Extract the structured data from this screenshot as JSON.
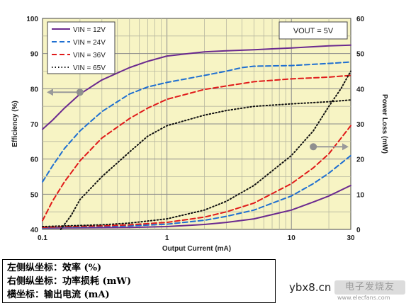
{
  "chart_data": {
    "type": "line",
    "title": "",
    "xlabel": "Output Current (mA)",
    "xscale": "log",
    "xlim": [
      0.1,
      30
    ],
    "x_ticks": [
      "0.1",
      "1",
      "10",
      "30"
    ],
    "ylabel_left": "Efficiency (%)",
    "ylim_left": [
      40,
      100
    ],
    "y_ticks_left": [
      "40",
      "50",
      "60",
      "70",
      "80",
      "90",
      "100"
    ],
    "ylabel_right": "Power Loss (mW)",
    "ylim_right": [
      0,
      60
    ],
    "y_ticks_right": [
      "0",
      "10",
      "20",
      "30",
      "40",
      "50",
      "60"
    ],
    "grid": true,
    "legend_position": "top-left",
    "annotation": "VOUT = 5V",
    "background_color": "#f7f4c4",
    "series": [
      {
        "name": "VIN = 12V",
        "color": "#6b2a8f",
        "dash": "solid",
        "efficiency": {
          "x": [
            0.1,
            0.12,
            0.15,
            0.2,
            0.3,
            0.5,
            0.7,
            1,
            2,
            3,
            5,
            10,
            20,
            30
          ],
          "y": [
            68.5,
            71,
            74.5,
            78.5,
            82.5,
            86,
            87.8,
            89.3,
            90.5,
            90.8,
            91.1,
            91.6,
            92.2,
            92.4
          ]
        },
        "power_loss": {
          "x": [
            0.1,
            0.3,
            0.5,
            1,
            2,
            3,
            5,
            10,
            15,
            20,
            30
          ],
          "y": [
            0.4,
            0.5,
            0.55,
            0.8,
            1.4,
            2,
            3,
            5.5,
            7.8,
            9.5,
            12.5
          ]
        }
      },
      {
        "name": "VIN = 24V",
        "color": "#1f6fd1",
        "dash": "dashed",
        "efficiency": {
          "x": [
            0.1,
            0.12,
            0.15,
            0.2,
            0.3,
            0.5,
            0.7,
            1,
            2,
            3,
            4,
            5,
            10,
            20,
            30
          ],
          "y": [
            53.5,
            58,
            63,
            68,
            73.5,
            78.5,
            80.5,
            81.8,
            83.8,
            85,
            86,
            86.4,
            86.6,
            87.2,
            87.6
          ]
        },
        "power_loss": {
          "x": [
            0.1,
            0.3,
            0.5,
            1,
            2,
            3,
            5,
            10,
            15,
            20,
            30
          ],
          "y": [
            0.5,
            0.8,
            1,
            1.5,
            2.6,
            3.7,
            5.5,
            9.5,
            13,
            16,
            21
          ]
        }
      },
      {
        "name": "VIN = 36V",
        "color": "#e01a1a",
        "dash": "dashed",
        "efficiency": {
          "x": [
            0.1,
            0.12,
            0.15,
            0.2,
            0.3,
            0.5,
            0.7,
            1,
            2,
            3,
            5,
            10,
            20,
            30
          ],
          "y": [
            42.5,
            48,
            53.5,
            59.5,
            66,
            71.5,
            74.5,
            77,
            79.8,
            80.8,
            82,
            82.8,
            83.3,
            83.8
          ]
        },
        "power_loss": {
          "x": [
            0.1,
            0.3,
            0.5,
            1,
            2,
            3,
            5,
            10,
            15,
            20,
            30
          ],
          "y": [
            0.6,
            1,
            1.3,
            2,
            3.5,
            5,
            7.5,
            13,
            17.5,
            21.5,
            29.5
          ]
        }
      },
      {
        "name": "VIN = 65V",
        "color": "#111111",
        "dash": "dotted",
        "efficiency": {
          "x": [
            0.14,
            0.17,
            0.2,
            0.3,
            0.5,
            0.7,
            1,
            2,
            3,
            5,
            10,
            20,
            30
          ],
          "y": [
            40,
            44,
            48.5,
            55,
            62,
            66.5,
            69.5,
            72.5,
            73.8,
            75,
            75.7,
            76.3,
            76.8
          ]
        },
        "power_loss": {
          "x": [
            0.1,
            0.3,
            0.5,
            1,
            2,
            3,
            5,
            10,
            15,
            20,
            25,
            30
          ],
          "y": [
            0.8,
            1.3,
            1.8,
            3,
            5.5,
            8,
            12.5,
            21,
            28,
            35,
            40,
            45
          ]
        }
      }
    ]
  },
  "captions": [
    "左侧纵坐标：效率 (%)",
    "右侧纵坐标：功率损耗 (mW)",
    "横坐标：输出电流 (mA)"
  ],
  "watermark": {
    "main": "ybx8.cn",
    "logo": "电子发烧友",
    "sub": "www.elecfans.com"
  }
}
